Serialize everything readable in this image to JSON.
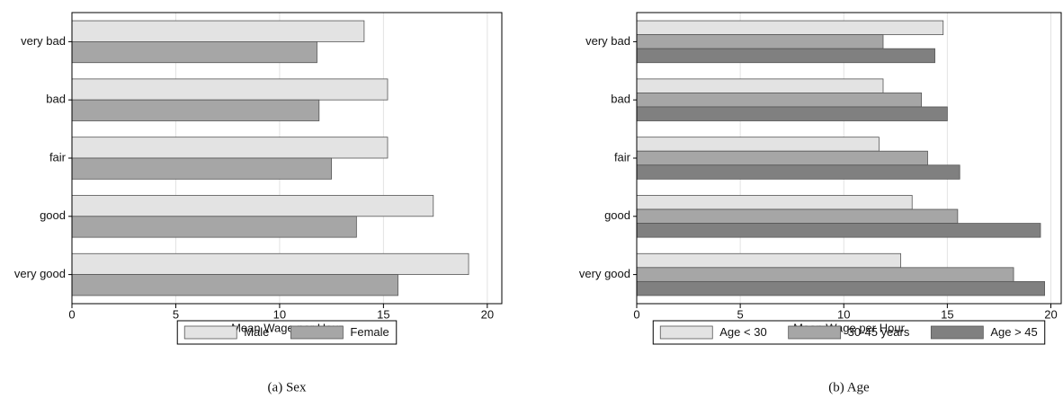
{
  "chart_data": [
    {
      "type": "bar",
      "orientation": "horizontal",
      "caption": "(a) Sex",
      "xlabel": "Mean Wage per Hour",
      "categories": [
        "very bad",
        "bad",
        "fair",
        "good",
        "very good"
      ],
      "series": [
        {
          "name": "Male",
          "color": "#e3e3e3",
          "values": [
            14.07,
            15.2,
            15.2,
            17.4,
            19.1
          ]
        },
        {
          "name": "Female",
          "color": "#a6a6a6",
          "values": [
            11.8,
            11.9,
            12.5,
            13.7,
            15.7
          ]
        }
      ],
      "xlim": [
        0,
        20.7
      ],
      "xticks": [
        0,
        5,
        10,
        15,
        20
      ],
      "grid": true,
      "legend": "bottom"
    },
    {
      "type": "bar",
      "orientation": "horizontal",
      "caption": "(b) Age",
      "xlabel": "Mean Wage per Hour",
      "categories": [
        "very bad",
        "bad",
        "fair",
        "good",
        "very good"
      ],
      "series": [
        {
          "name": "Age < 30",
          "color": "#e3e3e3",
          "values": [
            14.8,
            11.9,
            11.7,
            13.3,
            12.75
          ]
        },
        {
          "name": "30-45 years",
          "color": "#a6a6a6",
          "values": [
            11.9,
            13.75,
            14.05,
            15.5,
            18.2
          ]
        },
        {
          "name": "Age > 45",
          "color": "#808080",
          "values": [
            14.4,
            15.0,
            15.6,
            19.5,
            19.7
          ]
        }
      ],
      "xlim": [
        0,
        20.5
      ],
      "xticks": [
        0,
        5,
        10,
        15,
        20
      ],
      "grid": true,
      "legend": "bottom"
    }
  ]
}
